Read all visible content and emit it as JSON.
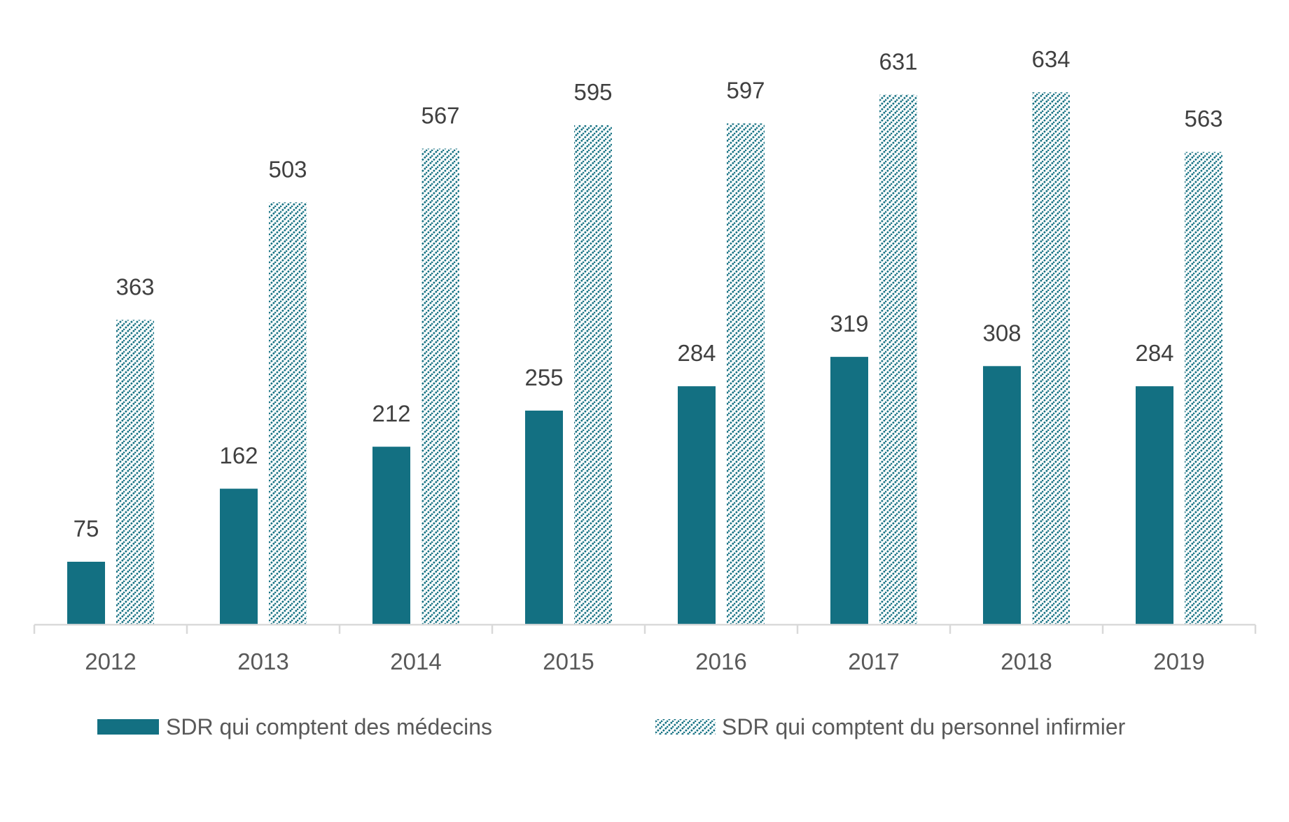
{
  "colors": {
    "accent": "#137082",
    "data_label": "#404040",
    "axis_label": "#595959",
    "axis_line": "#d9d9d9"
  },
  "chart_data": {
    "type": "bar",
    "title": "",
    "xlabel": "",
    "ylabel": "",
    "categories": [
      "2012",
      "2013",
      "2014",
      "2015",
      "2016",
      "2017",
      "2018",
      "2019"
    ],
    "series": [
      {
        "name": "SDR qui comptent des médecins",
        "fill": "solid",
        "values": [
          75,
          162,
          212,
          255,
          284,
          319,
          308,
          284
        ]
      },
      {
        "name": "SDR qui comptent du personnel infirmier",
        "fill": "hatched",
        "values": [
          363,
          503,
          567,
          595,
          597,
          631,
          634,
          563
        ]
      }
    ],
    "ylim": [
      0,
      744
    ],
    "grid": false,
    "y_axis_visible": false,
    "data_labels": true,
    "legend_position": "bottom"
  }
}
